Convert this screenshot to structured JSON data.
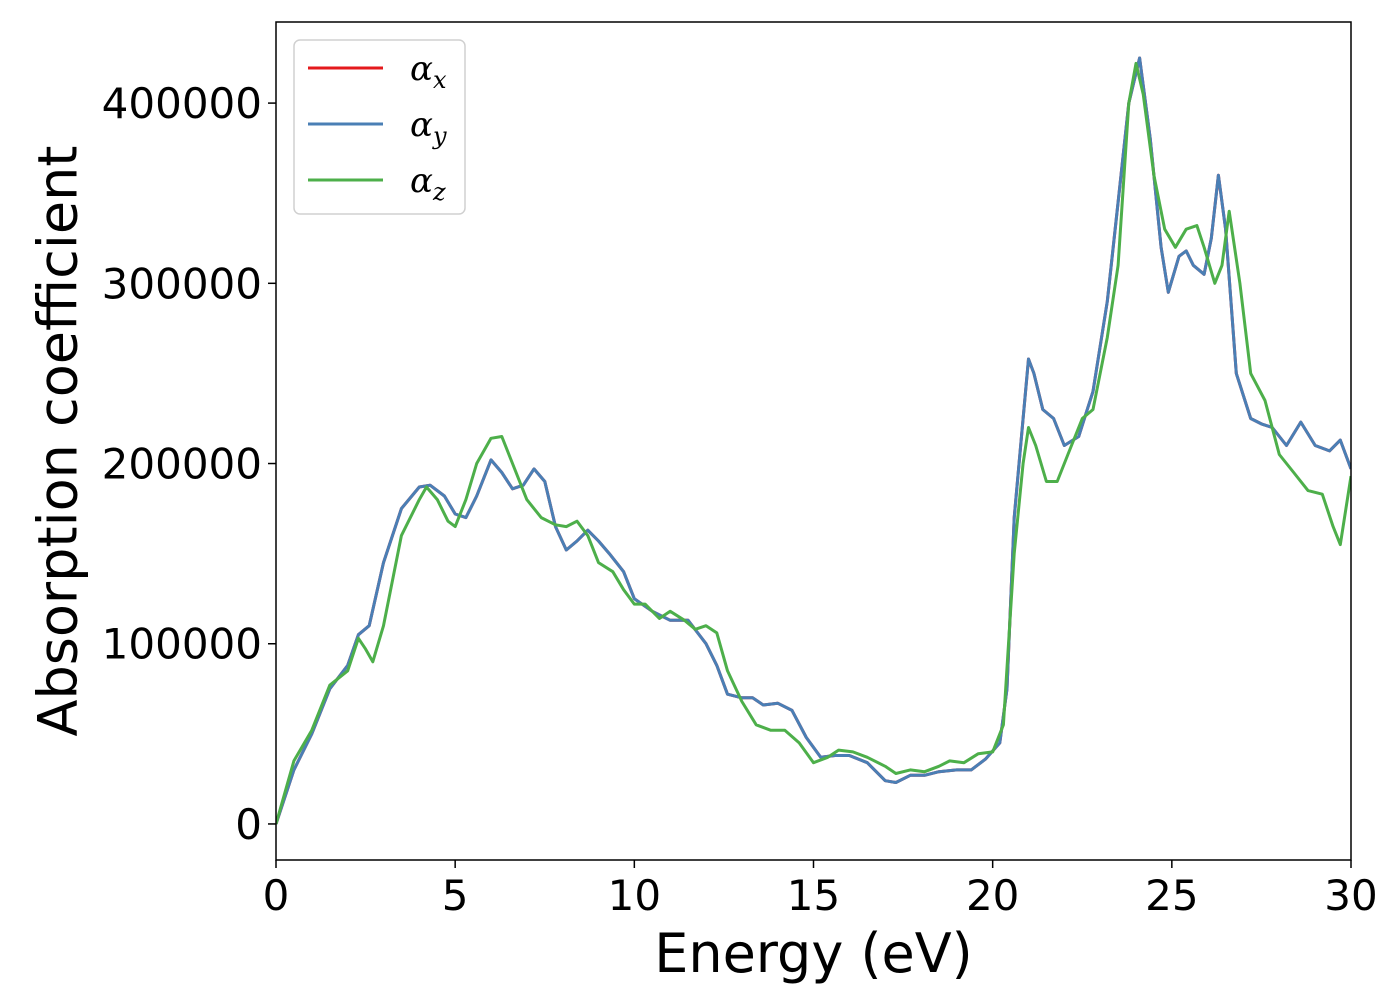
{
  "chart_data": {
    "type": "line",
    "title": "",
    "xlabel": "Energy (eV)",
    "ylabel": "Absorption coefficient",
    "xlim": [
      0,
      30
    ],
    "ylim": [
      -20000,
      445000
    ],
    "xticks": [
      0,
      5,
      10,
      15,
      20,
      25,
      30
    ],
    "xtick_labels": [
      "0",
      "5",
      "10",
      "15",
      "20",
      "25",
      "30"
    ],
    "yticks": [
      0,
      100000,
      200000,
      300000,
      400000
    ],
    "ytick_labels": [
      "0",
      "100000",
      "200000",
      "300000",
      "400000"
    ],
    "grid": false,
    "legend_position": "top-left",
    "series": [
      {
        "name": "αx",
        "symbol": "α",
        "subscript": "x",
        "color": "#e41a1c",
        "points": [
          [
            0,
            0
          ],
          [
            0.5,
            30000
          ],
          [
            1,
            50000
          ],
          [
            1.5,
            75000
          ],
          [
            2,
            88000
          ],
          [
            2.3,
            105000
          ],
          [
            2.6,
            110000
          ],
          [
            3,
            145000
          ],
          [
            3.5,
            175000
          ],
          [
            4,
            187000
          ],
          [
            4.3,
            188000
          ],
          [
            4.7,
            182000
          ],
          [
            5,
            172000
          ],
          [
            5.3,
            170000
          ],
          [
            5.6,
            182000
          ],
          [
            6,
            202000
          ],
          [
            6.3,
            195000
          ],
          [
            6.6,
            186000
          ],
          [
            6.9,
            188000
          ],
          [
            7.2,
            197000
          ],
          [
            7.5,
            190000
          ],
          [
            7.8,
            165000
          ],
          [
            8.1,
            152000
          ],
          [
            8.4,
            157000
          ],
          [
            8.7,
            163000
          ],
          [
            9,
            157000
          ],
          [
            9.3,
            150000
          ],
          [
            9.7,
            140000
          ],
          [
            10,
            125000
          ],
          [
            10.5,
            118000
          ],
          [
            11,
            113000
          ],
          [
            11.5,
            113000
          ],
          [
            12,
            100000
          ],
          [
            12.3,
            88000
          ],
          [
            12.6,
            72000
          ],
          [
            13,
            70000
          ],
          [
            13.3,
            70000
          ],
          [
            13.6,
            66000
          ],
          [
            14,
            67000
          ],
          [
            14.4,
            63000
          ],
          [
            14.8,
            48000
          ],
          [
            15.2,
            37000
          ],
          [
            15.6,
            38000
          ],
          [
            16,
            38000
          ],
          [
            16.5,
            34000
          ],
          [
            17,
            24000
          ],
          [
            17.3,
            23000
          ],
          [
            17.7,
            27000
          ],
          [
            18.1,
            27000
          ],
          [
            18.5,
            29000
          ],
          [
            19,
            30000
          ],
          [
            19.4,
            30000
          ],
          [
            19.8,
            36000
          ],
          [
            20.2,
            45000
          ],
          [
            20.4,
            75000
          ],
          [
            20.6,
            170000
          ],
          [
            20.85,
            225000
          ],
          [
            21,
            258000
          ],
          [
            21.15,
            250000
          ],
          [
            21.4,
            230000
          ],
          [
            21.7,
            225000
          ],
          [
            22,
            210000
          ],
          [
            22.4,
            215000
          ],
          [
            22.8,
            240000
          ],
          [
            23.2,
            290000
          ],
          [
            23.5,
            345000
          ],
          [
            23.8,
            400000
          ],
          [
            24.1,
            425000
          ],
          [
            24.4,
            380000
          ],
          [
            24.7,
            320000
          ],
          [
            24.9,
            295000
          ],
          [
            25.2,
            315000
          ],
          [
            25.4,
            318000
          ],
          [
            25.6,
            310000
          ],
          [
            25.9,
            305000
          ],
          [
            26.1,
            325000
          ],
          [
            26.3,
            360000
          ],
          [
            26.5,
            330000
          ],
          [
            26.8,
            250000
          ],
          [
            27.2,
            225000
          ],
          [
            27.5,
            222000
          ],
          [
            27.8,
            220000
          ],
          [
            28.2,
            210000
          ],
          [
            28.6,
            223000
          ],
          [
            29,
            210000
          ],
          [
            29.4,
            207000
          ],
          [
            29.7,
            213000
          ],
          [
            30,
            197000
          ]
        ]
      },
      {
        "name": "αy",
        "symbol": "α",
        "subscript": "y",
        "color": "#4a7fb5",
        "points": [
          [
            0,
            0
          ],
          [
            0.5,
            30000
          ],
          [
            1,
            50000
          ],
          [
            1.5,
            75000
          ],
          [
            2,
            88000
          ],
          [
            2.3,
            105000
          ],
          [
            2.6,
            110000
          ],
          [
            3,
            145000
          ],
          [
            3.5,
            175000
          ],
          [
            4,
            187000
          ],
          [
            4.3,
            188000
          ],
          [
            4.7,
            182000
          ],
          [
            5,
            172000
          ],
          [
            5.3,
            170000
          ],
          [
            5.6,
            182000
          ],
          [
            6,
            202000
          ],
          [
            6.3,
            195000
          ],
          [
            6.6,
            186000
          ],
          [
            6.9,
            188000
          ],
          [
            7.2,
            197000
          ],
          [
            7.5,
            190000
          ],
          [
            7.8,
            165000
          ],
          [
            8.1,
            152000
          ],
          [
            8.4,
            157000
          ],
          [
            8.7,
            163000
          ],
          [
            9,
            157000
          ],
          [
            9.3,
            150000
          ],
          [
            9.7,
            140000
          ],
          [
            10,
            125000
          ],
          [
            10.5,
            118000
          ],
          [
            11,
            113000
          ],
          [
            11.5,
            113000
          ],
          [
            12,
            100000
          ],
          [
            12.3,
            88000
          ],
          [
            12.6,
            72000
          ],
          [
            13,
            70000
          ],
          [
            13.3,
            70000
          ],
          [
            13.6,
            66000
          ],
          [
            14,
            67000
          ],
          [
            14.4,
            63000
          ],
          [
            14.8,
            48000
          ],
          [
            15.2,
            37000
          ],
          [
            15.6,
            38000
          ],
          [
            16,
            38000
          ],
          [
            16.5,
            34000
          ],
          [
            17,
            24000
          ],
          [
            17.3,
            23000
          ],
          [
            17.7,
            27000
          ],
          [
            18.1,
            27000
          ],
          [
            18.5,
            29000
          ],
          [
            19,
            30000
          ],
          [
            19.4,
            30000
          ],
          [
            19.8,
            36000
          ],
          [
            20.2,
            45000
          ],
          [
            20.4,
            75000
          ],
          [
            20.6,
            170000
          ],
          [
            20.85,
            225000
          ],
          [
            21,
            258000
          ],
          [
            21.15,
            250000
          ],
          [
            21.4,
            230000
          ],
          [
            21.7,
            225000
          ],
          [
            22,
            210000
          ],
          [
            22.4,
            215000
          ],
          [
            22.8,
            240000
          ],
          [
            23.2,
            290000
          ],
          [
            23.5,
            345000
          ],
          [
            23.8,
            400000
          ],
          [
            24.1,
            425000
          ],
          [
            24.4,
            380000
          ],
          [
            24.7,
            320000
          ],
          [
            24.9,
            295000
          ],
          [
            25.2,
            315000
          ],
          [
            25.4,
            318000
          ],
          [
            25.6,
            310000
          ],
          [
            25.9,
            305000
          ],
          [
            26.1,
            325000
          ],
          [
            26.3,
            360000
          ],
          [
            26.5,
            330000
          ],
          [
            26.8,
            250000
          ],
          [
            27.2,
            225000
          ],
          [
            27.5,
            222000
          ],
          [
            27.8,
            220000
          ],
          [
            28.2,
            210000
          ],
          [
            28.6,
            223000
          ],
          [
            29,
            210000
          ],
          [
            29.4,
            207000
          ],
          [
            29.7,
            213000
          ],
          [
            30,
            197000
          ]
        ]
      },
      {
        "name": "αz",
        "symbol": "α",
        "subscript": "z",
        "color": "#4daf4a",
        "points": [
          [
            0,
            0
          ],
          [
            0.5,
            35000
          ],
          [
            1,
            52000
          ],
          [
            1.5,
            77000
          ],
          [
            2,
            85000
          ],
          [
            2.3,
            103000
          ],
          [
            2.5,
            97000
          ],
          [
            2.7,
            90000
          ],
          [
            3,
            110000
          ],
          [
            3.5,
            160000
          ],
          [
            4,
            180000
          ],
          [
            4.2,
            187000
          ],
          [
            4.5,
            180000
          ],
          [
            4.8,
            168000
          ],
          [
            5,
            165000
          ],
          [
            5.3,
            180000
          ],
          [
            5.6,
            200000
          ],
          [
            6,
            214000
          ],
          [
            6.3,
            215000
          ],
          [
            6.6,
            200000
          ],
          [
            7,
            180000
          ],
          [
            7.4,
            170000
          ],
          [
            7.8,
            166000
          ],
          [
            8.1,
            165000
          ],
          [
            8.4,
            168000
          ],
          [
            8.7,
            160000
          ],
          [
            9,
            145000
          ],
          [
            9.4,
            140000
          ],
          [
            9.7,
            130000
          ],
          [
            10,
            122000
          ],
          [
            10.3,
            122000
          ],
          [
            10.7,
            114000
          ],
          [
            11,
            118000
          ],
          [
            11.4,
            113000
          ],
          [
            11.7,
            108000
          ],
          [
            12,
            110000
          ],
          [
            12.3,
            106000
          ],
          [
            12.6,
            85000
          ],
          [
            13,
            68000
          ],
          [
            13.4,
            55000
          ],
          [
            13.8,
            52000
          ],
          [
            14.2,
            52000
          ],
          [
            14.6,
            45000
          ],
          [
            15,
            34000
          ],
          [
            15.4,
            37000
          ],
          [
            15.7,
            41000
          ],
          [
            16.1,
            40000
          ],
          [
            16.5,
            37000
          ],
          [
            17,
            32000
          ],
          [
            17.3,
            28000
          ],
          [
            17.7,
            30000
          ],
          [
            18.1,
            29000
          ],
          [
            18.5,
            32000
          ],
          [
            18.8,
            35000
          ],
          [
            19.2,
            34000
          ],
          [
            19.6,
            39000
          ],
          [
            20,
            40000
          ],
          [
            20.3,
            55000
          ],
          [
            20.6,
            150000
          ],
          [
            20.85,
            200000
          ],
          [
            21,
            220000
          ],
          [
            21.2,
            210000
          ],
          [
            21.5,
            190000
          ],
          [
            21.8,
            190000
          ],
          [
            22.1,
            205000
          ],
          [
            22.5,
            225000
          ],
          [
            22.8,
            230000
          ],
          [
            23.2,
            270000
          ],
          [
            23.5,
            310000
          ],
          [
            23.8,
            400000
          ],
          [
            24,
            422000
          ],
          [
            24.2,
            405000
          ],
          [
            24.5,
            360000
          ],
          [
            24.8,
            330000
          ],
          [
            25.1,
            320000
          ],
          [
            25.4,
            330000
          ],
          [
            25.7,
            332000
          ],
          [
            25.9,
            320000
          ],
          [
            26.2,
            300000
          ],
          [
            26.4,
            310000
          ],
          [
            26.6,
            340000
          ],
          [
            26.9,
            300000
          ],
          [
            27.2,
            250000
          ],
          [
            27.6,
            235000
          ],
          [
            28,
            205000
          ],
          [
            28.4,
            195000
          ],
          [
            28.8,
            185000
          ],
          [
            29.2,
            183000
          ],
          [
            29.5,
            165000
          ],
          [
            29.7,
            155000
          ],
          [
            30,
            193000
          ]
        ]
      }
    ]
  }
}
